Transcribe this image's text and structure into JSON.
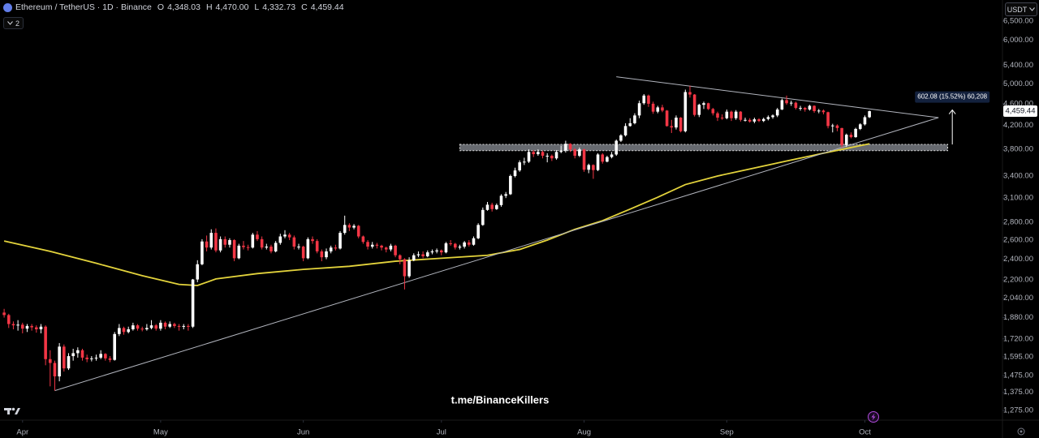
{
  "header": {
    "symbol": "Ethereum / TetherUS · 1D · Binance",
    "ohlc": [
      {
        "key": "O",
        "value": "4,348.03"
      },
      {
        "key": "H",
        "value": "4,470.00"
      },
      {
        "key": "L",
        "value": "4,332.73"
      },
      {
        "key": "C",
        "value": "4,459.44"
      }
    ]
  },
  "indicators_toggle": "2",
  "currency": "USDT",
  "watermark": "t.me/BinanceKillers",
  "chart_data": {
    "type": "candlestick",
    "log": true,
    "grid": false,
    "up_color": "#ffffff",
    "down_color": "#f23645",
    "xlim": [
      -0.9,
      216.9
    ],
    "ylim": [
      1224,
      7100
    ],
    "xticks": [
      {
        "value": 4,
        "label": "Apr"
      },
      {
        "value": 34,
        "label": "May"
      },
      {
        "value": 65,
        "label": "Jun"
      },
      {
        "value": 95,
        "label": "Jul"
      },
      {
        "value": 126,
        "label": "Aug"
      },
      {
        "value": 157,
        "label": "Sep"
      },
      {
        "value": 187,
        "label": "Oct"
      }
    ],
    "yticks": [
      {
        "value": 6500,
        "label": "6,500.00"
      },
      {
        "value": 6000,
        "label": "6,000.00"
      },
      {
        "value": 5400,
        "label": "5,400.00"
      },
      {
        "value": 5000,
        "label": "5,000.00"
      },
      {
        "value": 4600,
        "label": "4,600.00"
      },
      {
        "value": 4200,
        "label": "4,200.00"
      },
      {
        "value": 3800,
        "label": "3,800.00"
      },
      {
        "value": 3400,
        "label": "3,400.00"
      },
      {
        "value": 3100,
        "label": "3,100.00"
      },
      {
        "value": 2800,
        "label": "2,800.00"
      },
      {
        "value": 2600,
        "label": "2,600.00"
      },
      {
        "value": 2400,
        "label": "2,400.00"
      },
      {
        "value": 2200,
        "label": "2,200.00"
      },
      {
        "value": 2040,
        "label": "2,040.00"
      },
      {
        "value": 1880,
        "label": "1,880.00"
      },
      {
        "value": 1720,
        "label": "1,720.00"
      },
      {
        "value": 1595,
        "label": "1,595.00"
      },
      {
        "value": 1475,
        "label": "1,475.00"
      },
      {
        "value": 1375,
        "label": "1,375.00"
      },
      {
        "value": 1275,
        "label": "1,275.00"
      }
    ],
    "open": [
      1920,
      1900,
      1830,
      1820,
      1825,
      1795,
      1815,
      1805,
      1790,
      1810,
      1580,
      1555,
      1470,
      1665,
      1520,
      1600,
      1620,
      1640,
      1590,
      1580,
      1585,
      1590,
      1615,
      1585,
      1575,
      1755,
      1800,
      1770,
      1790,
      1820,
      1795,
      1790,
      1800,
      1820,
      1795,
      1840,
      1810,
      1830,
      1815,
      1810,
      1815,
      1810,
      2205,
      2350,
      2585,
      2520,
      2680,
      2490,
      2610,
      2550,
      2600,
      2410,
      2540,
      2525,
      2520,
      2660,
      2610,
      2520,
      2530,
      2480,
      2570,
      2640,
      2660,
      2630,
      2530,
      2530,
      2410,
      2610,
      2590,
      2480,
      2420,
      2480,
      2520,
      2510,
      2680,
      2770,
      2740,
      2760,
      2640,
      2580,
      2530,
      2550,
      2540,
      2520,
      2500,
      2540,
      2440,
      2400,
      2235,
      2390,
      2440,
      2450,
      2430,
      2470,
      2480,
      2490,
      2470,
      2565,
      2560,
      2520,
      2530,
      2575,
      2550,
      2620,
      2770,
      2950,
      3015,
      2960,
      3010,
      3130,
      3150,
      3400,
      3480,
      3600,
      3610,
      3760,
      3725,
      3760,
      3700,
      3700,
      3660,
      3760,
      3780,
      3890,
      3800,
      3700,
      3800,
      3490,
      3560,
      3485,
      3720,
      3610,
      3680,
      3720,
      3940,
      4030,
      4190,
      4240,
      4380,
      4610,
      4760,
      4600,
      4450,
      4530,
      4470,
      4190,
      4165,
      4340,
      4100,
      4830,
      4780,
      4390,
      4580,
      4610,
      4500,
      4420,
      4340,
      4330,
      4450,
      4330,
      4450,
      4300,
      4300,
      4270,
      4310,
      4280,
      4315,
      4350,
      4380,
      4490,
      4670,
      4610,
      4620,
      4520,
      4520,
      4490,
      4560,
      4460,
      4470,
      4440,
      4190,
      4200,
      4155,
      3870,
      4040,
      4000,
      4140,
      4220,
      4348.03
    ],
    "high": [
      1950,
      1910,
      1850,
      1860,
      1840,
      1830,
      1830,
      1820,
      1830,
      1820,
      1640,
      1570,
      1690,
      1680,
      1620,
      1650,
      1660,
      1650,
      1610,
      1600,
      1610,
      1640,
      1620,
      1600,
      1770,
      1830,
      1810,
      1810,
      1840,
      1830,
      1810,
      1830,
      1860,
      1830,
      1860,
      1850,
      1850,
      1840,
      1830,
      1830,
      1830,
      2210,
      2390,
      2610,
      2650,
      2720,
      2730,
      2640,
      2640,
      2620,
      2610,
      2560,
      2590,
      2550,
      2680,
      2700,
      2640,
      2560,
      2550,
      2590,
      2670,
      2710,
      2680,
      2650,
      2560,
      2540,
      2630,
      2640,
      2610,
      2500,
      2510,
      2540,
      2550,
      2700,
      2880,
      2790,
      2780,
      2770,
      2650,
      2600,
      2580,
      2570,
      2550,
      2530,
      2560,
      2550,
      2450,
      2410,
      2420,
      2460,
      2480,
      2480,
      2490,
      2500,
      2510,
      2500,
      2580,
      2600,
      2570,
      2550,
      2590,
      2600,
      2640,
      2790,
      2980,
      3050,
      3040,
      3030,
      3150,
      3180,
      3420,
      3520,
      3630,
      3670,
      3800,
      3790,
      3800,
      3780,
      3740,
      3720,
      3790,
      3860,
      3940,
      3900,
      3820,
      3830,
      3810,
      3580,
      3570,
      3740,
      3740,
      3700,
      3760,
      3960,
      4050,
      4240,
      4330,
      4420,
      4660,
      4790,
      4780,
      4640,
      4560,
      4580,
      4480,
      4300,
      4380,
      4350,
      4880,
      4960,
      4790,
      4600,
      4640,
      4620,
      4520,
      4450,
      4400,
      4490,
      4470,
      4480,
      4460,
      4340,
      4330,
      4340,
      4330,
      4340,
      4380,
      4400,
      4520,
      4700,
      4760,
      4660,
      4640,
      4560,
      4540,
      4580,
      4570,
      4500,
      4490,
      4450,
      4230,
      4220,
      4160,
      4060,
      4080,
      4160,
      4240,
      4380,
      4470
    ],
    "low": [
      1880,
      1800,
      1790,
      1780,
      1760,
      1770,
      1780,
      1765,
      1760,
      1540,
      1410,
      1385,
      1440,
      1500,
      1510,
      1570,
      1590,
      1570,
      1560,
      1565,
      1570,
      1580,
      1570,
      1560,
      1570,
      1740,
      1750,
      1760,
      1780,
      1780,
      1775,
      1780,
      1790,
      1780,
      1780,
      1790,
      1800,
      1800,
      1780,
      1790,
      1780,
      1800,
      2180,
      2340,
      2480,
      2500,
      2470,
      2470,
      2520,
      2520,
      2380,
      2400,
      2500,
      2490,
      2510,
      2590,
      2500,
      2500,
      2460,
      2470,
      2550,
      2620,
      2600,
      2500,
      2500,
      2380,
      2400,
      2560,
      2460,
      2380,
      2400,
      2460,
      2490,
      2500,
      2660,
      2700,
      2720,
      2620,
      2560,
      2500,
      2510,
      2510,
      2490,
      2470,
      2480,
      2420,
      2350,
      2115,
      2220,
      2380,
      2420,
      2410,
      2420,
      2450,
      2460,
      2440,
      2460,
      2540,
      2500,
      2500,
      2510,
      2530,
      2540,
      2610,
      2760,
      2940,
      2930,
      2950,
      2990,
      3100,
      3140,
      3380,
      3460,
      3560,
      3590,
      3680,
      3700,
      3660,
      3600,
      3620,
      3640,
      3740,
      3750,
      3760,
      3660,
      3680,
      3460,
      3440,
      3360,
      3470,
      3580,
      3600,
      3660,
      3700,
      3920,
      4010,
      4180,
      4220,
      4330,
      4580,
      4540,
      4410,
      4420,
      4440,
      4180,
      4070,
      4130,
      4080,
      4080,
      4720,
      4360,
      4350,
      4500,
      4480,
      4380,
      4280,
      4300,
      4310,
      4280,
      4300,
      4270,
      4270,
      4250,
      4240,
      4260,
      4260,
      4290,
      4320,
      4350,
      4480,
      4580,
      4560,
      4490,
      4470,
      4450,
      4470,
      4430,
      4420,
      4400,
      4150,
      4080,
      4100,
      3830,
      3840,
      3980,
      3990,
      4120,
      4200,
      4332.73
    ],
    "close": [
      1900,
      1830,
      1820,
      1825,
      1795,
      1815,
      1805,
      1790,
      1810,
      1580,
      1555,
      1470,
      1665,
      1520,
      1600,
      1620,
      1640,
      1590,
      1580,
      1585,
      1590,
      1615,
      1585,
      1575,
      1755,
      1800,
      1770,
      1790,
      1820,
      1795,
      1790,
      1800,
      1820,
      1795,
      1840,
      1810,
      1830,
      1815,
      1810,
      1815,
      1810,
      2205,
      2350,
      2585,
      2520,
      2680,
      2490,
      2610,
      2550,
      2600,
      2410,
      2540,
      2525,
      2520,
      2660,
      2610,
      2520,
      2530,
      2480,
      2570,
      2640,
      2660,
      2630,
      2530,
      2530,
      2410,
      2610,
      2590,
      2480,
      2420,
      2480,
      2520,
      2510,
      2680,
      2770,
      2740,
      2760,
      2640,
      2580,
      2530,
      2550,
      2540,
      2520,
      2500,
      2540,
      2440,
      2400,
      2235,
      2390,
      2440,
      2450,
      2430,
      2470,
      2480,
      2490,
      2470,
      2565,
      2560,
      2520,
      2530,
      2575,
      2550,
      2620,
      2770,
      2950,
      3015,
      2960,
      3010,
      3130,
      3150,
      3400,
      3480,
      3600,
      3610,
      3760,
      3725,
      3760,
      3700,
      3700,
      3660,
      3760,
      3780,
      3890,
      3800,
      3700,
      3800,
      3490,
      3560,
      3485,
      3720,
      3610,
      3680,
      3720,
      3940,
      4030,
      4190,
      4240,
      4380,
      4610,
      4760,
      4600,
      4450,
      4530,
      4470,
      4190,
      4165,
      4340,
      4100,
      4830,
      4780,
      4390,
      4580,
      4610,
      4500,
      4420,
      4340,
      4330,
      4450,
      4330,
      4450,
      4300,
      4300,
      4270,
      4310,
      4280,
      4315,
      4350,
      4380,
      4490,
      4670,
      4610,
      4620,
      4520,
      4520,
      4490,
      4560,
      4460,
      4470,
      4440,
      4190,
      4200,
      4155,
      3870,
      4040,
      4000,
      4140,
      4220,
      4348.03,
      4459.44
    ],
    "last_price_label": "4,459.44",
    "ma": {
      "color": "#e3d33c",
      "x": [
        0,
        10,
        20,
        30,
        38,
        42,
        46,
        55,
        65,
        75,
        85,
        95,
        105,
        112,
        118,
        124,
        130,
        136,
        142,
        148,
        155,
        162,
        170,
        178,
        184,
        188
      ],
      "values": [
        2590,
        2480,
        2360,
        2240,
        2160,
        2150,
        2210,
        2260,
        2300,
        2330,
        2380,
        2410,
        2440,
        2500,
        2600,
        2720,
        2820,
        2960,
        3110,
        3280,
        3400,
        3500,
        3620,
        3740,
        3830,
        3890
      ]
    },
    "trendlines": [
      {
        "color": "#b2b5be",
        "x": [
          11,
          203
        ],
        "values": [
          1385,
          4340
        ]
      },
      {
        "color": "#b2b5be",
        "x": [
          133,
          203
        ],
        "values": [
          5150,
          4340
        ]
      }
    ],
    "zone": {
      "color": "#8a8d96",
      "x": [
        99,
        205
      ],
      "values": [
        3780,
        3880
      ]
    },
    "measure": {
      "label": "602.08 (15.52%) 60,208",
      "x": 206,
      "values": [
        3879.3,
        4481.38
      ]
    }
  }
}
